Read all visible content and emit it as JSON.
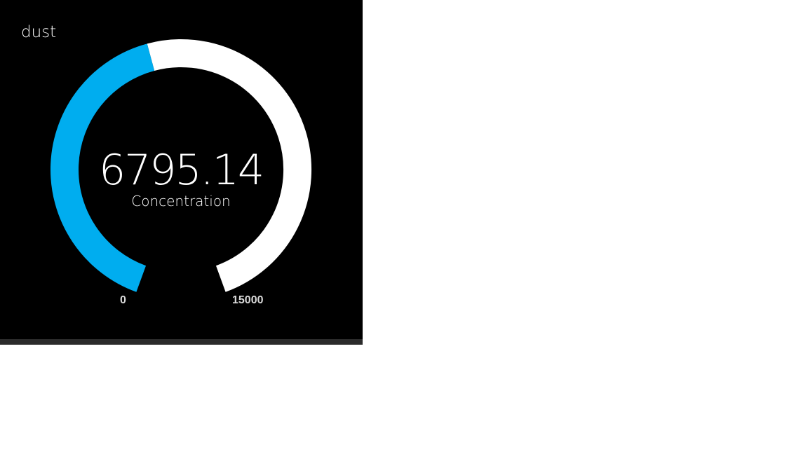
{
  "widget": {
    "title": "dust"
  },
  "gauge": {
    "value": 6795.14,
    "value_text": "6795.14",
    "label": "Concentration",
    "min": 0,
    "max": 15000,
    "min_label": "0",
    "max_label": "15000",
    "colors": {
      "value_arc": "#00adef",
      "track_arc": "#ffffff",
      "background": "#000000"
    }
  }
}
